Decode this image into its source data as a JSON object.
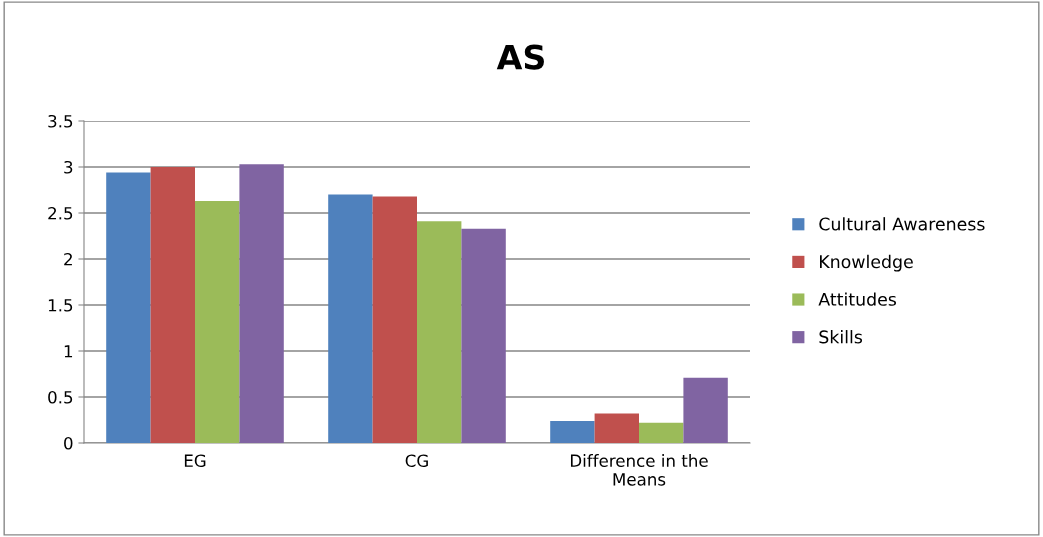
{
  "chart_data": {
    "type": "bar",
    "title": "AS",
    "categories": [
      "EG",
      "CG",
      "Difference in the Means"
    ],
    "series": [
      {
        "name": "Cultural Awareness",
        "color": "#4f81bd",
        "values": [
          2.94,
          2.7,
          0.24
        ]
      },
      {
        "name": "Knowledge",
        "color": "#c0504d",
        "values": [
          3.0,
          2.68,
          0.32
        ]
      },
      {
        "name": "Attitudes",
        "color": "#9bbb59",
        "values": [
          2.63,
          2.41,
          0.22
        ]
      },
      {
        "name": "Skills",
        "color": "#8064a2",
        "values": [
          3.03,
          2.33,
          0.71
        ]
      }
    ],
    "ylim": [
      0,
      3.5
    ],
    "yticks": [
      0,
      0.5,
      1,
      1.5,
      2,
      2.5,
      3,
      3.5
    ],
    "grid": "y",
    "legend": "right"
  }
}
